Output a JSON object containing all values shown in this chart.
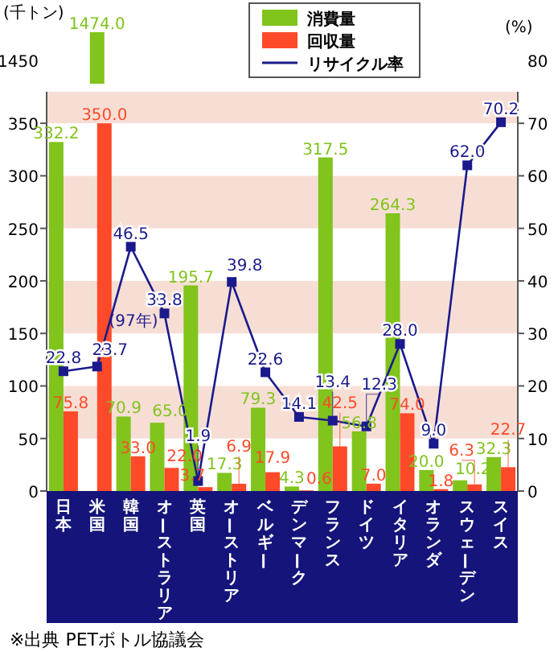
{
  "chart_data": [
    {
      "type": "other",
      "ylabel": "(千トン)",
      "y2label": "(%)",
      "categories": [
        null,
        null,
        null,
        null,
        null,
        null,
        null,
        null,
        null,
        null,
        null,
        null,
        null,
        null
      ],
      "series": [
        {
          "color": "#80c41c",
          "values": [
            null,
            1474.0,
            null,
            null,
            null,
            null,
            null,
            null,
            null,
            null,
            null,
            null,
            null,
            null
          ],
          "value_labels": [
            null,
            "1474.0",
            null,
            null,
            null,
            null,
            null,
            null,
            null,
            null,
            null,
            null,
            null,
            null
          ]
        }
      ],
      "annotations": [
        "1450",
        "80"
      ]
    },
    {
      "type": "bar",
      "categories": [
        "日本",
        "米国",
        "韓国",
        "オーストラリア",
        "英国",
        "オーストリア",
        "ベルギー",
        "デンマーク",
        "フランス",
        "ドイツ",
        "イタリア",
        "オランダ",
        "スウェーデン",
        "スイス"
      ],
      "series": [
        {
          "name": "消費量",
          "color": "#80c41c",
          "values": [
            332.2,
            null,
            70.9,
            65.0,
            195.7,
            17.3,
            79.3,
            4.3,
            317.5,
            56.8,
            264.3,
            20.0,
            10.2,
            32.3
          ],
          "value_labels": [
            "332.2",
            null,
            "70.9",
            "65.0",
            "195.7",
            "17.3",
            "79.3",
            "4.3",
            "317.5",
            "56.8",
            "264.3",
            "20.0",
            "10.2",
            "32.3"
          ]
        },
        {
          "name": "回収量",
          "color": "#ff4a2a",
          "values": [
            75.8,
            350.0,
            33.0,
            22.0,
            3.7,
            6.9,
            17.9,
            0.6,
            42.5,
            7.0,
            74.0,
            1.8,
            6.3,
            22.7
          ],
          "value_labels": [
            "75.8",
            "350.0",
            "33.0",
            "22.0",
            "3.7",
            "6.9",
            "17.9",
            "0.6",
            "42.5",
            "7.0",
            "74.0",
            "1.8",
            "6.3",
            "22.7"
          ]
        },
        {
          "name": "リサイクル率",
          "type": "line",
          "axis": "y2",
          "color": "#1a1a8c",
          "marker": "square",
          "values": [
            22.8,
            23.7,
            46.5,
            33.8,
            1.9,
            39.8,
            22.6,
            14.1,
            13.4,
            12.3,
            28.0,
            9.0,
            62.0,
            70.2
          ],
          "value_labels": [
            "22.8",
            "23.7",
            "46.5",
            "33.8",
            "1.9",
            "39.8",
            "22.6",
            "14.1",
            "13.4",
            "12.3",
            "28.0",
            "9.0",
            "62.0",
            "70.2"
          ]
        }
      ],
      "ylim": [
        0,
        380
      ],
      "yticks": [
        0,
        50,
        100,
        150,
        200,
        250,
        300,
        350
      ],
      "y2lim": [
        0,
        76
      ],
      "y2ticks": [
        0,
        10,
        20,
        30,
        40,
        50,
        60,
        70
      ],
      "bands": [
        {
          "axis": "y",
          "from": 50,
          "to": 100,
          "color": "#f7ded5"
        },
        {
          "axis": "y",
          "from": 150,
          "to": 200,
          "color": "#f7ded5"
        },
        {
          "axis": "y",
          "from": 250,
          "to": 300,
          "color": "#f7ded5"
        },
        {
          "axis": "y",
          "from": 350,
          "to": 380,
          "color": "#f7ded5"
        }
      ],
      "legend": "top",
      "annotations": [
        {
          "text": "(97年)",
          "x": "オーストラリア",
          "y": 169
        },
        "※出典 PETボトル協議会"
      ]
    }
  ]
}
